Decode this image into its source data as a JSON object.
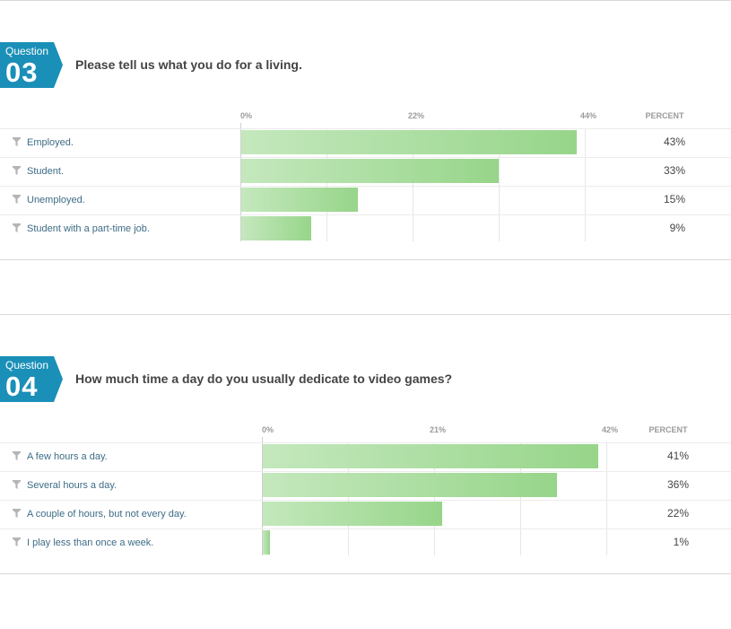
{
  "questions": [
    {
      "badge_label": "Question",
      "number": "03",
      "title": "Please tell us what you do for a living.",
      "percent_header": "PERCENT",
      "chart_data": {
        "type": "bar",
        "orientation": "horizontal",
        "categories": [
          "Employed.",
          "Student.",
          "Unemployed.",
          "Student with a part-time job."
        ],
        "values": [
          43,
          33,
          15,
          9
        ],
        "value_labels": [
          "43%",
          "33%",
          "15%",
          "9%"
        ],
        "tick_labels": [
          "0%",
          "22%",
          "44%"
        ],
        "xlim": [
          0,
          44
        ]
      }
    },
    {
      "badge_label": "Question",
      "number": "04",
      "title": "How much time a day do you usually dedicate to video games?",
      "percent_header": "PERCENT",
      "chart_data": {
        "type": "bar",
        "orientation": "horizontal",
        "categories": [
          "A few hours a day.",
          "Several hours a day.",
          "A couple of hours, but not every day.",
          "I play less than once a week."
        ],
        "values": [
          41,
          36,
          22,
          1
        ],
        "value_labels": [
          "41%",
          "36%",
          "22%",
          "1%"
        ],
        "tick_labels": [
          "0%",
          "21%",
          "42%"
        ],
        "xlim": [
          0,
          42
        ]
      }
    }
  ],
  "colors": {
    "badge": "#1a8fb8",
    "bar_start": "#c4e8bd",
    "bar_end": "#97d58a",
    "label": "#3d6c86"
  },
  "icons": {
    "row_icon": "filter-icon"
  }
}
